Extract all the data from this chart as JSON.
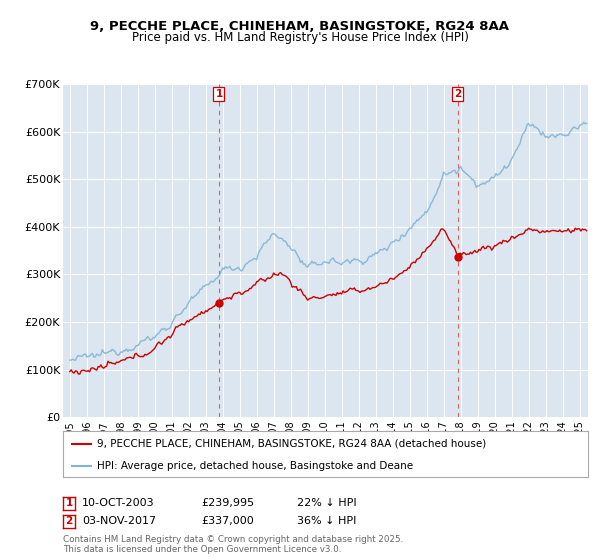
{
  "title_line1": "9, PECCHE PLACE, CHINEHAM, BASINGSTOKE, RG24 8AA",
  "title_line2": "Price paid vs. HM Land Registry's House Price Index (HPI)",
  "background_color": "#ffffff",
  "plot_bg_color": "#dce6f1",
  "grid_color": "#ffffff",
  "hpi_color": "#7fb3d3",
  "price_color": "#cc0000",
  "legend_line1": "9, PECCHE PLACE, CHINEHAM, BASINGSTOKE, RG24 8AA (detached house)",
  "legend_line2": "HPI: Average price, detached house, Basingstoke and Deane",
  "footnote": "Contains HM Land Registry data © Crown copyright and database right 2025.\nThis data is licensed under the Open Government Licence v3.0.",
  "ylim": [
    0,
    700000
  ],
  "yticks": [
    0,
    100000,
    200000,
    300000,
    400000,
    500000,
    600000,
    700000
  ],
  "ytick_labels": [
    "£0",
    "£100K",
    "£200K",
    "£300K",
    "£400K",
    "£500K",
    "£600K",
    "£700K"
  ],
  "sale1_year": 2003.78,
  "sale1_price": 239995,
  "sale2_year": 2017.84,
  "sale2_price": 337000,
  "sale1_date": "10-OCT-2003",
  "sale2_date": "03-NOV-2017",
  "sale1_hpi": "22% ↓ HPI",
  "sale2_hpi": "36% ↓ HPI",
  "sale1_price_str": "£239,995",
  "sale2_price_str": "£337,000"
}
